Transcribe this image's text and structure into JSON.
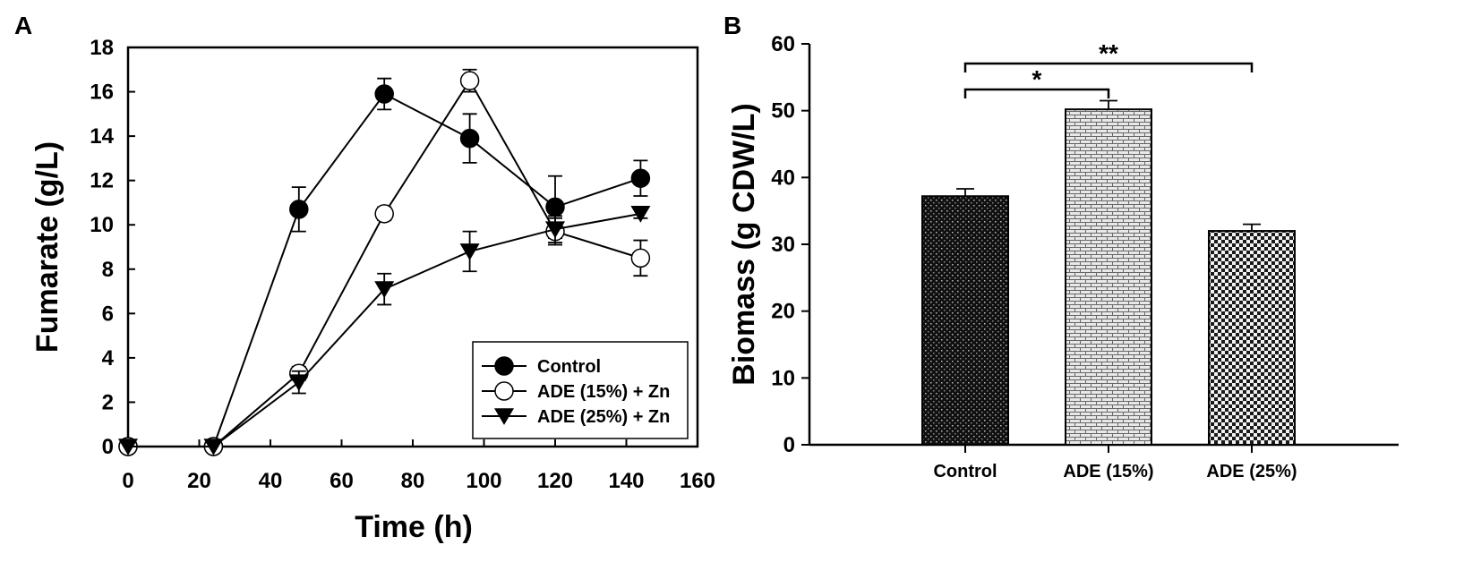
{
  "chart_data": [
    {
      "panel": "A",
      "type": "line",
      "xlabel": "Time (h)",
      "ylabel": "Fumarate (g/L)",
      "xlim": [
        0,
        160
      ],
      "ylim": [
        0,
        18
      ],
      "xticks": [
        0,
        20,
        40,
        60,
        80,
        100,
        120,
        140,
        160
      ],
      "yticks": [
        0,
        2,
        4,
        6,
        8,
        10,
        12,
        14,
        16,
        18
      ],
      "legend_position": "bottom-right",
      "series": [
        {
          "name": "Control",
          "marker": "filled-circle",
          "x": [
            0,
            24,
            48,
            72,
            96,
            120,
            144
          ],
          "y": [
            0,
            0,
            10.7,
            15.9,
            13.9,
            10.8,
            12.1
          ],
          "err": [
            0,
            0,
            1.0,
            0.7,
            1.1,
            1.4,
            0.8
          ]
        },
        {
          "name": "ADE (15%) + Zn",
          "marker": "open-circle",
          "x": [
            0,
            24,
            48,
            72,
            96,
            120,
            144
          ],
          "y": [
            0,
            0,
            3.3,
            10.5,
            16.5,
            9.7,
            8.5
          ],
          "err": [
            0,
            0,
            0.3,
            0.3,
            0.5,
            0.6,
            0.8
          ]
        },
        {
          "name": "ADE (25%) + Zn",
          "marker": "filled-triangle-down",
          "x": [
            0,
            24,
            48,
            72,
            96,
            120,
            144
          ],
          "y": [
            0,
            0,
            2.9,
            7.1,
            8.8,
            9.8,
            10.5
          ],
          "err": [
            0,
            0,
            0.5,
            0.7,
            0.9,
            0.6,
            0.2
          ]
        }
      ]
    },
    {
      "panel": "B",
      "type": "bar",
      "ylabel": "Biomass (g CDW/L)",
      "ylim": [
        0,
        60
      ],
      "yticks": [
        0,
        10,
        20,
        30,
        40,
        50,
        60
      ],
      "categories": [
        "Control",
        "ADE (15%)",
        "ADE (25%)"
      ],
      "values": [
        37.2,
        50.2,
        32.0
      ],
      "err": [
        1.1,
        1.3,
        1.0
      ],
      "patterns": [
        "dots-dark",
        "brick-light",
        "checker"
      ],
      "significance": [
        {
          "from": 0,
          "to": 1,
          "label": "*"
        },
        {
          "from": 0,
          "to": 2,
          "label": "**"
        }
      ]
    }
  ]
}
